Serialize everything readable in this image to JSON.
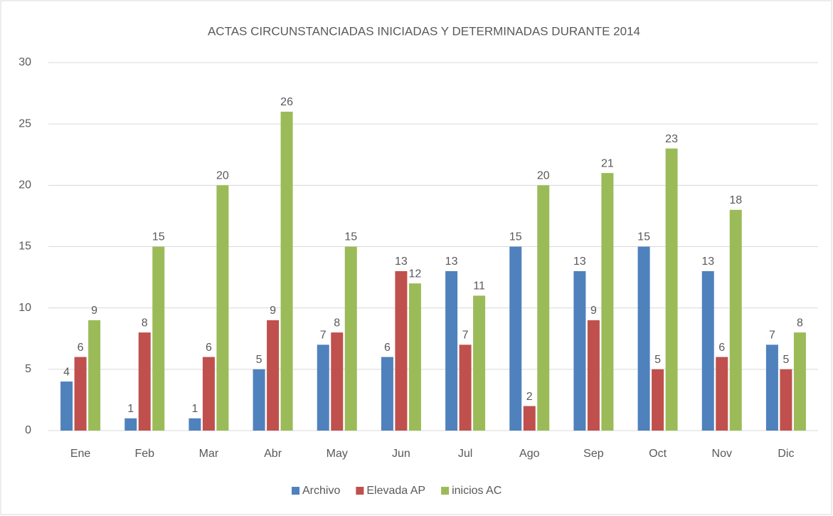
{
  "chart_data": {
    "type": "bar",
    "title": "ACTAS CIRCUNSTANCIADAS INICIADAS Y DETERMINADAS DURANTE 2014",
    "categories": [
      "Ene",
      "Feb",
      "Mar",
      "Abr",
      "May",
      "Jun",
      "Jul",
      "Ago",
      "Sep",
      "Oct",
      "Nov",
      "Dic"
    ],
    "series": [
      {
        "name": "Archivo",
        "color": "#4f81bd",
        "values": [
          4,
          1,
          1,
          5,
          7,
          6,
          13,
          15,
          13,
          15,
          13,
          7
        ]
      },
      {
        "name": "Elevada AP",
        "color": "#c0504d",
        "values": [
          6,
          8,
          6,
          9,
          8,
          13,
          7,
          2,
          9,
          5,
          6,
          5
        ]
      },
      {
        "name": "inicios AC",
        "color": "#9bbb59",
        "values": [
          9,
          15,
          20,
          26,
          15,
          12,
          11,
          20,
          21,
          23,
          18,
          8
        ]
      }
    ],
    "ylim": [
      0,
      30
    ],
    "yticks": [
      0,
      5,
      10,
      15,
      20,
      25,
      30
    ],
    "grid": true,
    "legend": "bottom"
  }
}
